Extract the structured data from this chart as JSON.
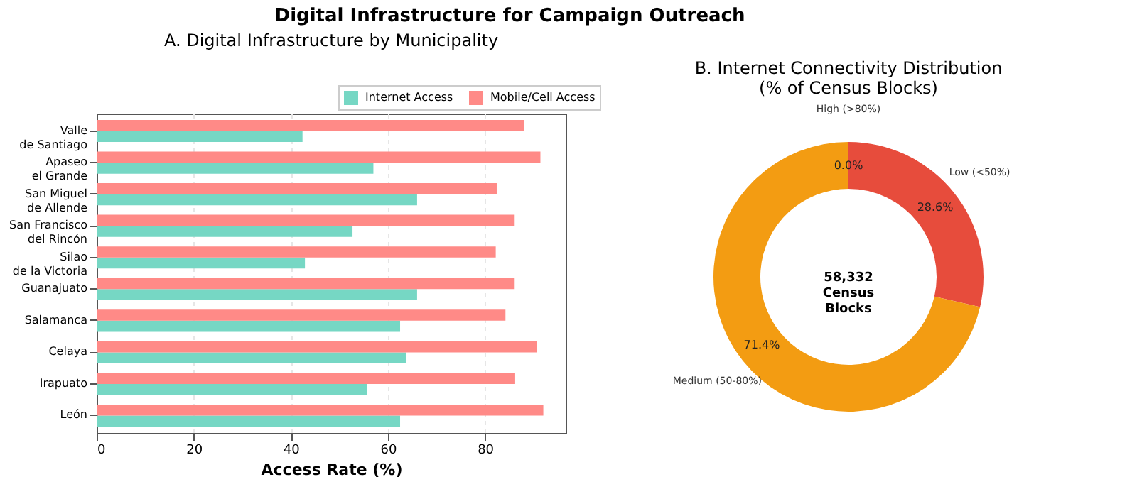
{
  "chart_data": [
    {
      "type": "bar",
      "orientation": "horizontal",
      "title": "A. Digital Infrastructure by Municipality",
      "xlabel": "Access Rate (%)",
      "annotations": [
        "Digital Infrastructure for Campaign Outreach"
      ],
      "categories": [
        "Valle\nde Santiago",
        "Apaseo\nel Grande",
        "San Miguel\nde Allende",
        "San Francisco\ndel Rincón",
        "Silao\nde la Victoria",
        "Guanajuato",
        "Salamanca",
        "Celaya",
        "Irapuato",
        "León"
      ],
      "series": [
        {
          "name": "Internet Access",
          "color": "#76d7c4",
          "values": [
            42.4,
            57.0,
            66.0,
            52.7,
            42.9,
            66.0,
            62.5,
            63.8,
            55.7,
            62.5
          ]
        },
        {
          "name": "Mobile/Cell Access",
          "color": "#ff8a87",
          "values": [
            88.0,
            91.4,
            82.4,
            86.1,
            82.2,
            86.1,
            84.2,
            90.7,
            86.2,
            92.0
          ]
        }
      ],
      "xlim": [
        0,
        96.6
      ],
      "xticks": [
        0,
        20,
        40,
        60,
        80
      ],
      "grid": "x",
      "legend": "top right"
    },
    {
      "type": "donut",
      "title": "B. Internet Connectivity Distribution\n(% of Census Blocks)",
      "categories": [
        "High (>80%)",
        "Low (<50%)",
        "Medium (50-80%)"
      ],
      "values": [
        0.0,
        28.6,
        71.4
      ],
      "colors": [
        "#2ecc71",
        "#e74c3c",
        "#f39c12"
      ],
      "value_labels": [
        "0.0%",
        "28.6%",
        "71.4%"
      ],
      "annotations": [
        "58,332\nCensus\nBlocks"
      ]
    }
  ]
}
